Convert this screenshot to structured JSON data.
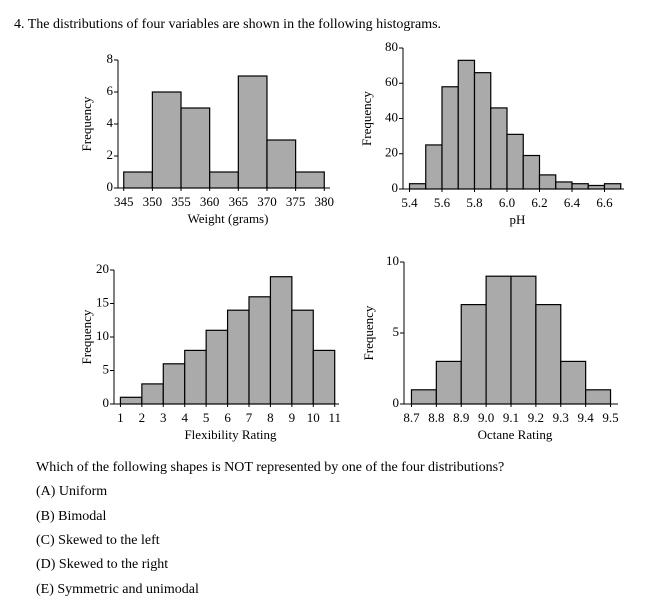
{
  "heading": "4. The distributions of four variables are shown in the following histograms.",
  "chart_data": [
    {
      "type": "histogram",
      "xlabel": "Weight (grams)",
      "ylabel": "Frequency",
      "bins": [
        345,
        350,
        355,
        360,
        365,
        370,
        375,
        380
      ],
      "values": [
        1,
        6,
        5,
        1,
        7,
        3,
        1
      ],
      "xlim": [
        344,
        381
      ],
      "xticks": [
        345,
        350,
        355,
        360,
        365,
        370,
        375,
        380
      ],
      "ylim": [
        0,
        8
      ],
      "yticks": [
        0,
        2,
        4,
        6,
        8
      ],
      "color": "#aaaaaa"
    },
    {
      "type": "histogram",
      "xlabel": "pH",
      "ylabel": "Frequency",
      "bins": [
        5.4,
        5.5,
        5.6,
        5.7,
        5.8,
        5.9,
        6.0,
        6.1,
        6.2,
        6.3,
        6.4,
        6.5,
        6.6,
        6.7
      ],
      "values": [
        3,
        25,
        58,
        73,
        66,
        46,
        31,
        19,
        8,
        4,
        3,
        2,
        3
      ],
      "xlim": [
        5.36,
        6.72
      ],
      "xticks": [
        5.4,
        5.6,
        5.8,
        {
          "value": 6,
          "label": "6.0"
        },
        6.2,
        6.4,
        6.6
      ],
      "ylim": [
        0,
        80
      ],
      "yticks": [
        0,
        20,
        40,
        60,
        80
      ],
      "color": "#aaaaaa"
    },
    {
      "type": "histogram",
      "xlabel": "Flexibility Rating",
      "ylabel": "Frequency",
      "bins": [
        1,
        2,
        3,
        4,
        5,
        6,
        7,
        8,
        9,
        10,
        11
      ],
      "values": [
        1,
        3,
        6,
        8,
        11,
        14,
        16,
        19,
        14,
        8
      ],
      "xlim": [
        0.7,
        11.2
      ],
      "xticks": [
        1,
        2,
        3,
        4,
        5,
        6,
        7,
        8,
        9,
        10,
        11
      ],
      "ylim": [
        0,
        20
      ],
      "yticks": [
        0,
        5,
        10,
        15,
        20
      ],
      "color": "#aaaaaa"
    },
    {
      "type": "histogram",
      "xlabel": "Octane Rating",
      "ylabel": "Frequency",
      "bins": [
        8.7,
        8.8,
        8.9,
        9.0,
        9.1,
        9.2,
        9.3,
        9.4,
        9.5
      ],
      "values": [
        1,
        3,
        7,
        9,
        9,
        7,
        3,
        1
      ],
      "xlim": [
        8.67,
        9.53
      ],
      "xticks": [
        8.7,
        8.8,
        8.9,
        {
          "value": 9,
          "label": "9.0"
        },
        9.1,
        9.2,
        9.3,
        9.4,
        9.5
      ],
      "ylim": [
        0,
        10
      ],
      "yticks": [
        0,
        5,
        10
      ],
      "color": "#aaaaaa"
    }
  ],
  "question": "Which of the following shapes is NOT represented by one of the four distributions?",
  "choices": [
    "(A) Uniform",
    "(B) Bimodal",
    "(C) Skewed to the left",
    "(D) Skewed to the right",
    "(E) Symmetric and unimodal"
  ]
}
